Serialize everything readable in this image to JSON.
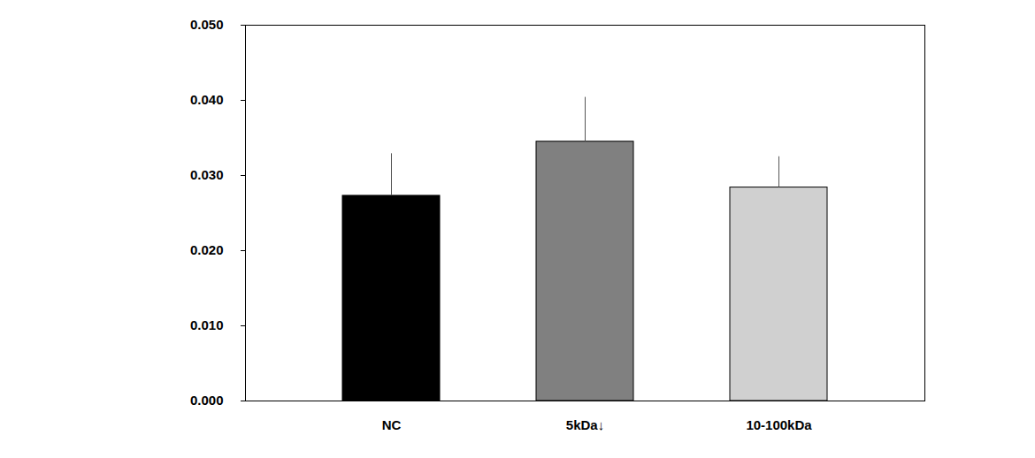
{
  "chart_data": {
    "type": "bar",
    "categories": [
      "NC",
      "5kDa↓",
      "10-100kDa"
    ],
    "values": [
      0.0273,
      0.0345,
      0.0284
    ],
    "errors": [
      0.0056,
      0.0059,
      0.0041
    ],
    "colors": [
      "#000000",
      "#808080",
      "#d0d0d0"
    ],
    "ylim": [
      0,
      0.05
    ],
    "yticks": [
      {
        "value": 0,
        "label": "0.000"
      },
      {
        "value": 0.01,
        "label": "0.010"
      },
      {
        "value": 0.02,
        "label": "0.020"
      },
      {
        "value": 0.03,
        "label": "0.030"
      },
      {
        "value": 0.04,
        "label": "0.040"
      },
      {
        "value": 0.05,
        "label": "0.050"
      }
    ],
    "grid": false
  }
}
